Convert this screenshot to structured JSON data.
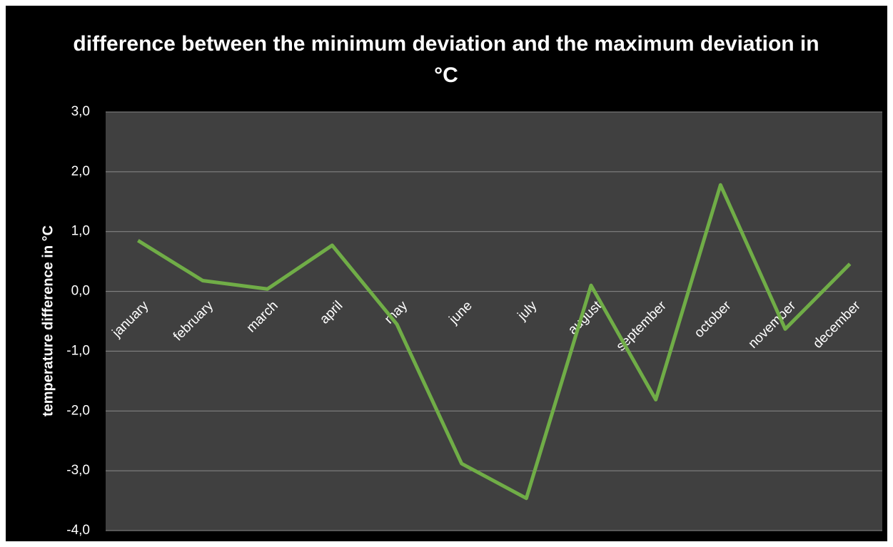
{
  "chart_data": {
    "type": "line",
    "title": "difference between the minimum deviation and the maximum deviation in °C",
    "y_label": "temperature difference in °C",
    "categories": [
      "january",
      "february",
      "march",
      "april",
      "may",
      "june",
      "july",
      "august",
      "september",
      "october",
      "november",
      "december"
    ],
    "values": [
      0.85,
      0.18,
      0.04,
      0.77,
      -0.55,
      -2.88,
      -3.46,
      0.1,
      -1.81,
      1.78,
      -0.63,
      0.46
    ],
    "color": "#70ad47",
    "ylim": [
      -4,
      3
    ],
    "yticks": [
      {
        "value": -4,
        "label": "-4,0"
      },
      {
        "value": -3,
        "label": "-3,0"
      },
      {
        "value": -2,
        "label": "-2,0"
      },
      {
        "value": -1,
        "label": "-1,0"
      },
      {
        "value": 0,
        "label": "0,0"
      },
      {
        "value": 1,
        "label": "1,0"
      },
      {
        "value": 2,
        "label": "2,0"
      },
      {
        "value": 3,
        "label": "3,0"
      }
    ],
    "grid": true
  }
}
